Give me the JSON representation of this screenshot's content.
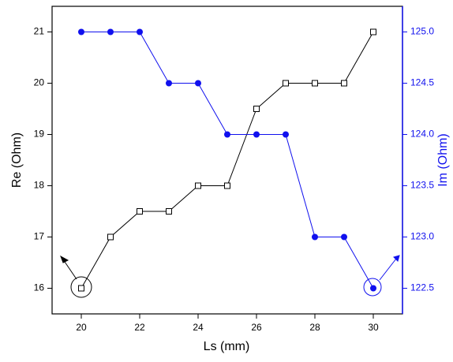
{
  "chart_data": {
    "type": "line",
    "x_label": "Ls (mm)",
    "y_label": "Re (Ohm)",
    "y2_label": "Im (Ohm)",
    "x": [
      20,
      21,
      22,
      23,
      24,
      25,
      26,
      27,
      28,
      29,
      30
    ],
    "series": [
      {
        "color": "#000000",
        "marker": "open-square",
        "values": [
          16,
          17,
          17.5,
          17.5,
          18,
          18,
          19.5,
          20,
          20,
          20,
          21
        ]
      },
      {
        "color": "#1010ee",
        "marker": "filled-circle",
        "axis": "y2",
        "values": [
          125,
          125,
          125,
          124.5,
          124.5,
          124,
          124,
          124,
          123,
          123,
          122.5
        ]
      }
    ],
    "xlim": [
      19,
      31
    ],
    "xticks": [
      20,
      22,
      24,
      26,
      28,
      30
    ],
    "ylim": [
      15.5,
      21.5
    ],
    "yticks": [
      16,
      17,
      18,
      19,
      20,
      21
    ],
    "y2lim": [
      122.25,
      125.25
    ],
    "y2ticks": [
      {
        "value": 122.5,
        "label": "122.5"
      },
      {
        "value": 123,
        "label": "123.0"
      },
      {
        "value": 123.5,
        "label": "123.5"
      },
      {
        "value": 124,
        "label": "124.0"
      },
      {
        "value": 124.5,
        "label": "124.5"
      },
      {
        "value": 125,
        "label": "125.0"
      }
    ],
    "y2_color": "#1010ee"
  }
}
